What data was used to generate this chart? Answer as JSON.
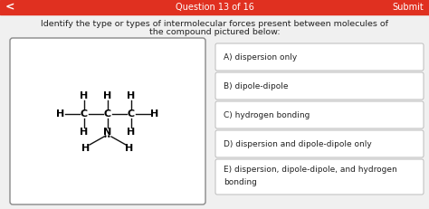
{
  "bg_color": "#f0f0f0",
  "header_color": "#e03020",
  "header_text": "Question 13 of 16",
  "header_right_text": "Submit",
  "title_line1": "Identify the type or types of intermolecular forces present between molecules of",
  "title_line2": "the compound pictured below:",
  "options": [
    "A) dispersion only",
    "B) dipole-dipole",
    "C) hydrogen bonding",
    "D) dispersion and dipole-dipole only",
    "E) dispersion, dipole-dipole, and hydrogen\nbonding"
  ],
  "option_box_color": "#ffffff",
  "option_border_color": "#bbbbbb",
  "molecule_box_color": "#ffffff",
  "molecule_border_color": "#888888",
  "text_color": "#222222",
  "header_text_color": "#ffffff",
  "title_fontsize": 6.8,
  "option_fontsize": 6.5,
  "header_fontsize": 7.0
}
